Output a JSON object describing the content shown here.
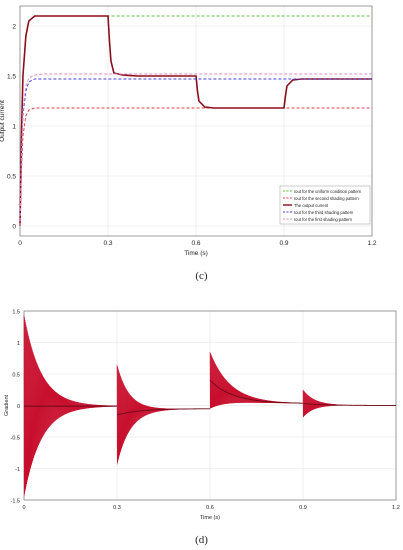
{
  "captions": {
    "c": "(c)",
    "d": "(d)"
  },
  "chart_data": [
    {
      "id": "c",
      "type": "line",
      "xlabel": "Time (s)",
      "ylabel": "Output current",
      "xlim": [
        0,
        1.2
      ],
      "ylim": [
        -0.1,
        2.2
      ],
      "xticks": [
        "0",
        "0.3",
        "0.6",
        "0.9",
        "1.2"
      ],
      "yticks": [
        "0",
        "0.5",
        "1",
        "1.5",
        "2"
      ],
      "grid": true,
      "legend_position": "bottom-right",
      "series": [
        {
          "name": "Iout for the uniform condition pattern",
          "style": "dash",
          "color": "#5fbf3a",
          "x": [
            0,
            0.005,
            0.01,
            0.02,
            0.03,
            0.05,
            0.08,
            1.2
          ],
          "y": [
            0,
            0.9,
            1.5,
            1.9,
            2.05,
            2.1,
            2.1,
            2.1
          ]
        },
        {
          "name": "Iout for the second shading pattern",
          "style": "dash",
          "color": "#e0404a",
          "x": [
            0,
            0.005,
            0.01,
            0.02,
            0.03,
            0.05,
            0.08,
            1.2
          ],
          "y": [
            0,
            0.55,
            0.9,
            1.1,
            1.16,
            1.18,
            1.18,
            1.18
          ]
        },
        {
          "name": "The output current",
          "style": "solid",
          "color": "#8b0d1c",
          "x": [
            0,
            0.005,
            0.01,
            0.02,
            0.03,
            0.05,
            0.3,
            0.305,
            0.31,
            0.32,
            0.35,
            0.4,
            0.6,
            0.605,
            0.61,
            0.63,
            0.66,
            0.7,
            0.9,
            0.905,
            0.91,
            0.93,
            0.96,
            1.0,
            1.2
          ],
          "y": [
            0,
            0.9,
            1.5,
            1.9,
            2.05,
            2.1,
            2.1,
            1.85,
            1.65,
            1.53,
            1.51,
            1.5,
            1.5,
            1.35,
            1.25,
            1.19,
            1.18,
            1.18,
            1.18,
            1.3,
            1.4,
            1.46,
            1.47,
            1.47,
            1.47
          ]
        },
        {
          "name": "Iout for the third shading pattern",
          "style": "dash",
          "color": "#4a3fd8",
          "x": [
            0,
            0.005,
            0.01,
            0.02,
            0.03,
            0.05,
            0.08,
            1.2
          ],
          "y": [
            0,
            0.7,
            1.1,
            1.35,
            1.44,
            1.47,
            1.47,
            1.47
          ]
        },
        {
          "name": "Iout for the first shading pattern",
          "style": "dash",
          "color": "#e58ac8",
          "x": [
            0,
            0.005,
            0.01,
            0.02,
            0.03,
            0.05,
            0.08,
            1.2
          ],
          "y": [
            0,
            0.7,
            1.15,
            1.4,
            1.48,
            1.51,
            1.52,
            1.52
          ]
        }
      ]
    },
    {
      "id": "d",
      "type": "line",
      "xlabel": "Time (s)",
      "ylabel": "Gradient",
      "xlim": [
        0,
        1.2
      ],
      "ylim": [
        -1.5,
        1.5
      ],
      "xticks": [
        "0",
        "0.3",
        "0.6",
        "0.9",
        "1.2"
      ],
      "yticks": [
        "-1.5",
        "-1",
        "-0.5",
        "0",
        "0.5",
        "1",
        "1.5"
      ],
      "grid": true,
      "series": [
        {
          "name": "",
          "style": "oscillation",
          "color": "#c8102e",
          "segments": [
            {
              "start": 0.0,
              "end": 0.3,
              "amp": 1.45,
              "offset": -0.01,
              "decay": 0.055
            },
            {
              "start": 0.3,
              "end": 0.6,
              "amp": 0.8,
              "offset": -0.15,
              "decay": 0.04,
              "drift_end": -0.05
            },
            {
              "start": 0.6,
              "end": 0.9,
              "amp": 0.45,
              "offset": 0.4,
              "decay": 0.06,
              "drift_end": 0.03
            },
            {
              "start": 0.9,
              "end": 1.2,
              "amp": 0.22,
              "offset": 0.03,
              "decay": 0.035,
              "drift_end": 0.0
            }
          ]
        }
      ]
    }
  ]
}
